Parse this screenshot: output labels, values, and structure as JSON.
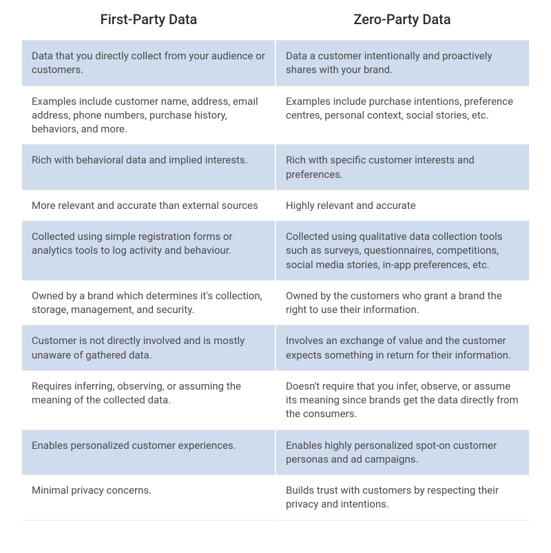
{
  "table": {
    "type": "table",
    "columns": [
      "First-Party Data",
      "Zero-Party Data"
    ],
    "column_widths": [
      0.5,
      0.5
    ],
    "header_fontsize": 20,
    "header_color": "#2b2b2b",
    "cell_fontsize": 15,
    "cell_text_color": "#4a4a4a",
    "row_shaded_bg": "#cfdced",
    "row_plain_bg": "#ffffff",
    "row_border_color": "#e6e6e6",
    "column_gap_color": "#ffffff",
    "background_color": "#ffffff",
    "rows": [
      {
        "shaded": true,
        "left": "Data that you directly collect from your audience or customers.",
        "right": "Data a customer intentionally and proactively shares with your brand."
      },
      {
        "shaded": false,
        "left": "Examples include customer name, address, email address, phone numbers, purchase history, behaviors, and more.",
        "right": "Examples include purchase intentions, preference centres, personal context, social stories, etc."
      },
      {
        "shaded": true,
        "left": "Rich with behavioral data and implied interests.",
        "right": "Rich with specific customer interests and preferences."
      },
      {
        "shaded": false,
        "left": "More relevant and accurate than external sources",
        "right": "Highly relevant and accurate"
      },
      {
        "shaded": true,
        "left": "Collected using simple registration forms or analytics tools to log activity and behaviour.",
        "right": "Collected using qualitative data collection tools such as surveys, questionnaires, competitions, social media stories, in-app preferences, etc."
      },
      {
        "shaded": false,
        "left": "Owned by a brand which determines it's collection, storage, management, and security.",
        "right": "Owned by the customers who grant a brand the right to use their information."
      },
      {
        "shaded": true,
        "left": "Customer is not directly involved and is mostly unaware of gathered data.",
        "right": "Involves an exchange of value and the customer expects something in return for their information."
      },
      {
        "shaded": false,
        "left": "Requires inferring, observing, or assuming the meaning of the collected data.",
        "right": "Doesn't require that you infer, observe, or assume its meaning since brands get the data directly from the consumers."
      },
      {
        "shaded": true,
        "left": "Enables personalized customer experiences.",
        "right": "Enables highly personalized spot-on customer personas and ad campaigns."
      },
      {
        "shaded": false,
        "left": "Minimal privacy concerns.",
        "right": "Builds trust with customers by respecting their privacy and intentions."
      }
    ]
  }
}
